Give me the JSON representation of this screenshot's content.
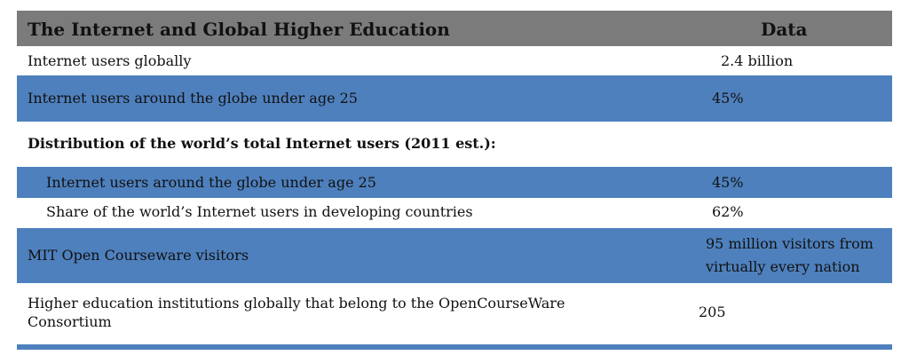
{
  "header": {
    "title": "The Internet and Global Higher Education",
    "data_column": "Data"
  },
  "rows": [
    {
      "label": "Internet users globally",
      "value": "2.4 billion"
    },
    {
      "label": "Internet users around the globe under age 25",
      "value": "45%"
    },
    {
      "label": "Distribution of the world’s total Internet users (2011 est.):",
      "value": ""
    },
    {
      "label": "Internet users around the globe under age 25",
      "value": "45%"
    },
    {
      "label": "Share of the world’s Internet users in developing countries",
      "value": "62%"
    },
    {
      "label": "MIT Open Courseware visitors",
      "value_line1": "95 million visitors from",
      "value_line2": "virtually every nation"
    },
    {
      "label_line1": "Higher education institutions globally that belong to the OpenCourseWare",
      "label_line2": "Consortium",
      "value": "205"
    }
  ],
  "colors": {
    "header_bg": "#7b7b7b",
    "band_blue": "#4e80bd",
    "text": "#111111"
  }
}
